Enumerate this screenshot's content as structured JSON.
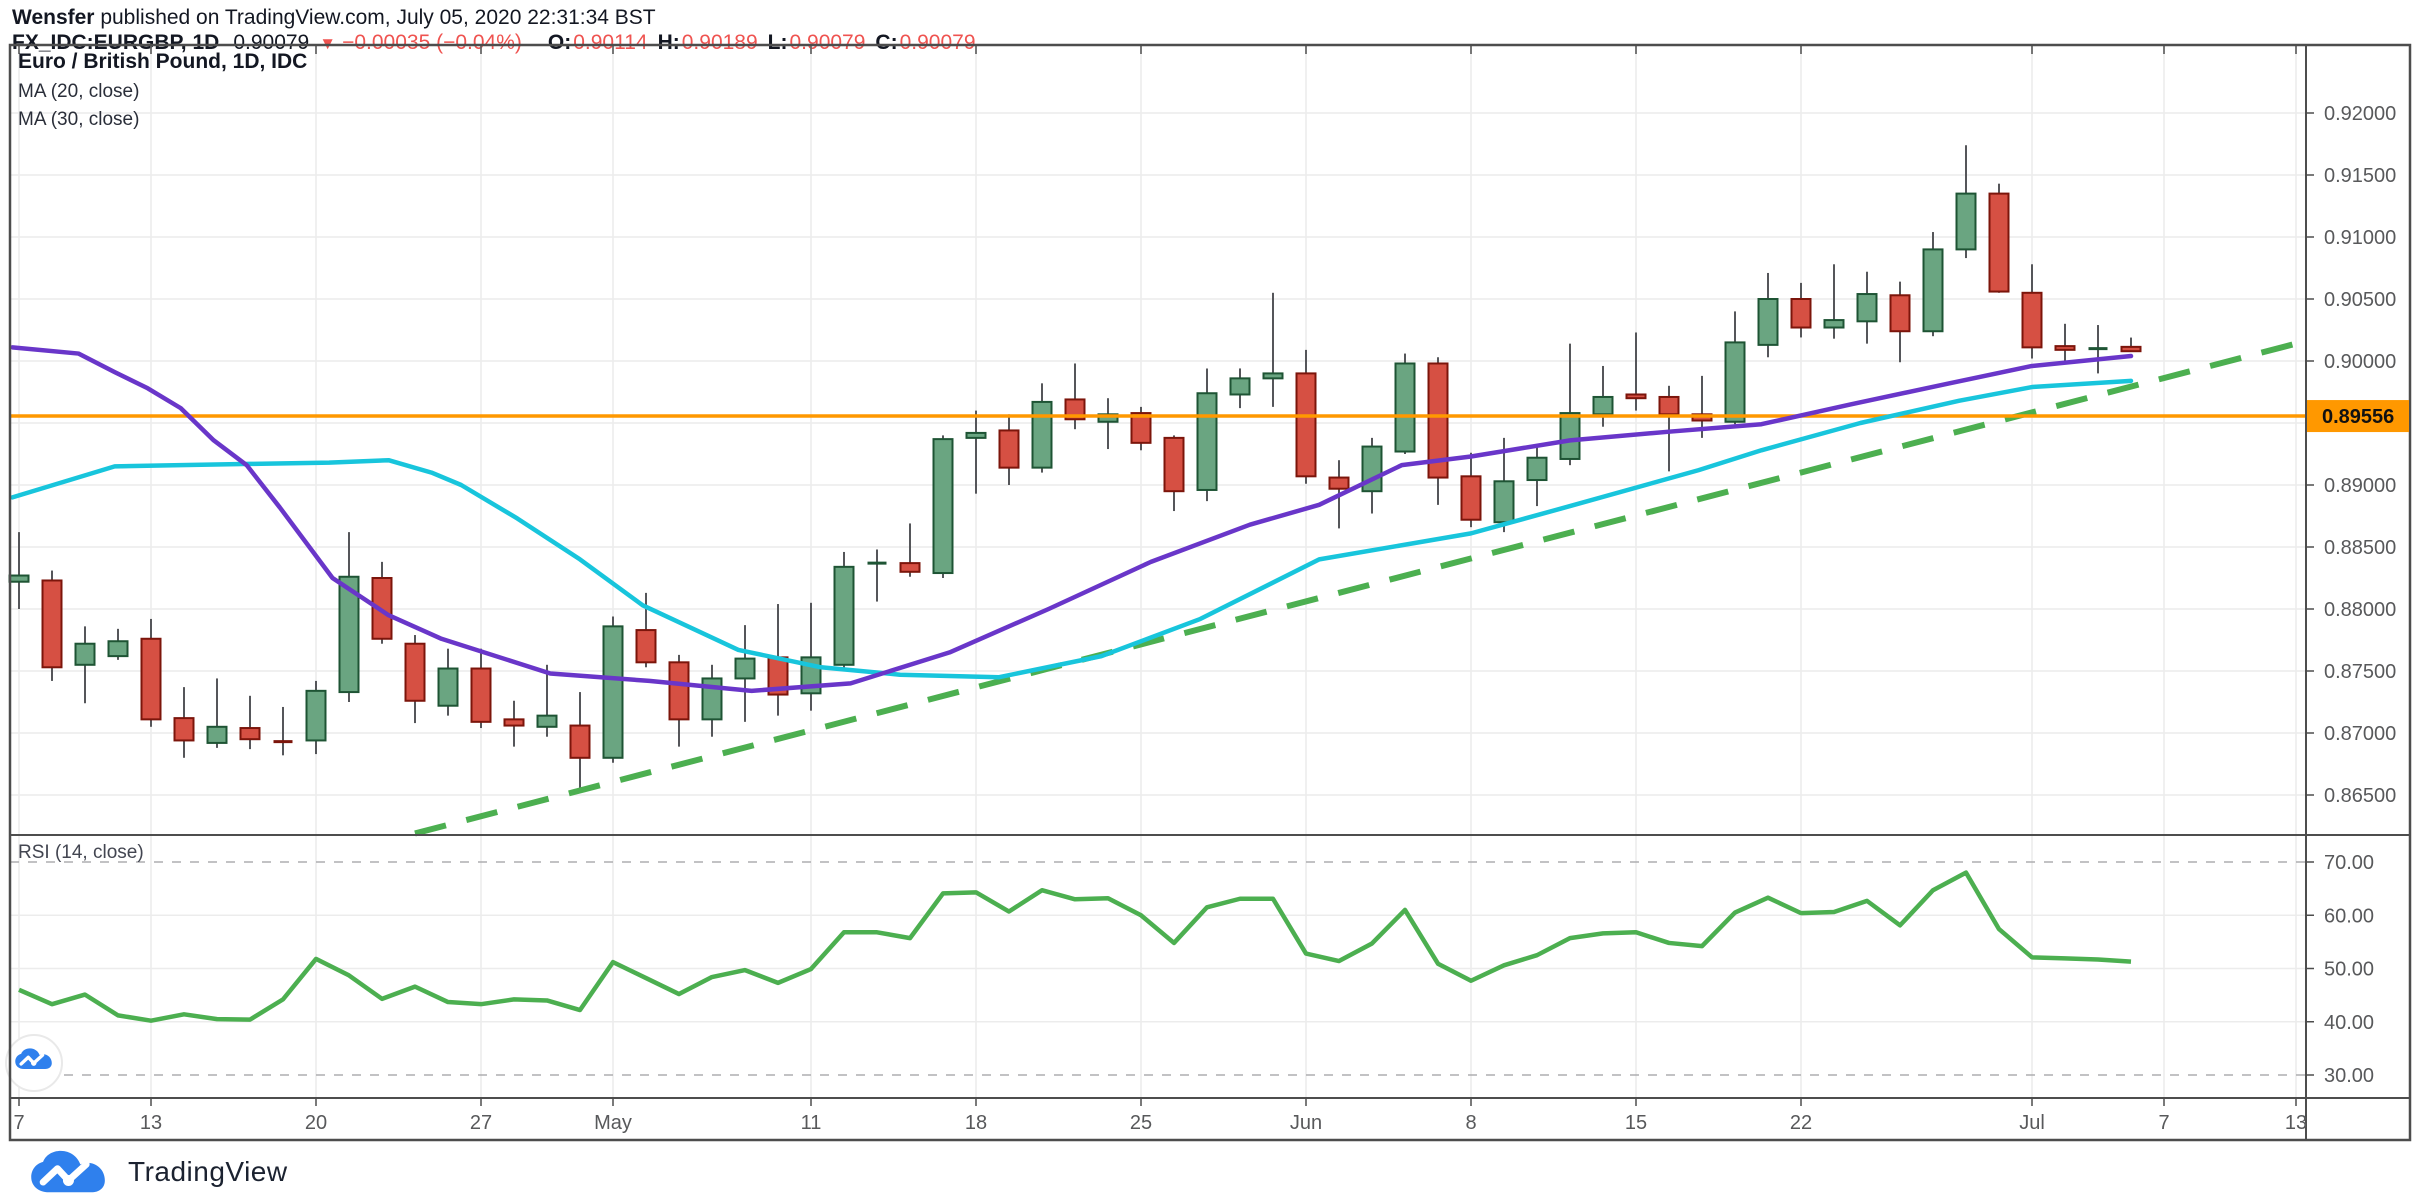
{
  "header": {
    "author": "Wensfer",
    "publish_text": " published on TradingView.com, July 05, 2020 22:31:34 BST",
    "symbol": "FX_IDC:EURGBP, 1D",
    "last_price": "0.90079",
    "direction_icon": "down-triangle",
    "change": "−0.00035 (−0.04%)",
    "ohlc": [
      {
        "k": "O:",
        "v": "0.90114"
      },
      {
        "k": "H:",
        "v": "0.90189"
      },
      {
        "k": "L:",
        "v": "0.90079"
      },
      {
        "k": "C:",
        "v": "0.90079"
      }
    ]
  },
  "legend": {
    "title": "Euro / British Pound, 1D, IDC",
    "ma1": "MA (20, close)",
    "ma2": "MA (30, close)"
  },
  "rsi_label": "RSI (14, close)",
  "footer_logo_text": "TradingView",
  "colors": {
    "ink": "#131722",
    "red": "#ef5350",
    "axis_text": "#58595b",
    "grid": "#ececec",
    "frame": "#4d4d4d",
    "up_fill": "#6aa581",
    "up_border": "#1e5434",
    "down_fill": "#d65043",
    "down_border": "#7c150b",
    "wick": "#55565a",
    "ma20": "#6936c9",
    "ma30": "#18c5dc",
    "orange": "#ff9800",
    "green_line": "#4caf50",
    "level_dash": "#adaeb0",
    "logo_blue": "#2f80ed"
  },
  "chart_data": {
    "type": "candlestick",
    "title": "Euro / British Pound, 1D, IDC",
    "symbol": "EURGBP",
    "timeframe": "1D",
    "price_axis_ticks": [
      "0.92000",
      "0.91500",
      "0.91000",
      "0.90500",
      "0.90000",
      "0.89500",
      "0.89000",
      "0.88500",
      "0.88000",
      "0.87500",
      "0.87000",
      "0.86500"
    ],
    "price_axis_values": [
      0.92,
      0.915,
      0.91,
      0.905,
      0.9,
      0.895,
      0.89,
      0.885,
      0.88,
      0.875,
      0.87,
      0.865
    ],
    "price_range_visible": [
      0.8618,
      0.9255
    ],
    "price_line": {
      "value": 0.89556,
      "label": "0.89556"
    },
    "time_ticks": [
      {
        "label": "7",
        "i": 0
      },
      {
        "label": "13",
        "i": 4
      },
      {
        "label": "20",
        "i": 9
      },
      {
        "label": "27",
        "i": 14
      },
      {
        "label": "May",
        "i": 18
      },
      {
        "label": "11",
        "i": 24
      },
      {
        "label": "18",
        "i": 29
      },
      {
        "label": "25",
        "i": 34
      },
      {
        "label": "Jun",
        "i": 39
      },
      {
        "label": "8",
        "i": 44
      },
      {
        "label": "15",
        "i": 49
      },
      {
        "label": "22",
        "i": 54
      },
      {
        "label": "Jul",
        "i": 61
      },
      {
        "label": "7",
        "i": 65
      },
      {
        "label": "13",
        "i": 69
      }
    ],
    "candles": [
      [
        "Apr 7",
        0.8822,
        0.8862,
        0.88,
        0.8827
      ],
      [
        "Apr 8",
        0.8823,
        0.8831,
        0.8742,
        0.8753
      ],
      [
        "Apr 9",
        0.8755,
        0.8786,
        0.8724,
        0.8772
      ],
      [
        "Apr 10",
        0.8762,
        0.8784,
        0.8759,
        0.8774
      ],
      [
        "Apr 13",
        0.8776,
        0.8792,
        0.8705,
        0.8711
      ],
      [
        "Apr 14",
        0.8712,
        0.8737,
        0.868,
        0.8694
      ],
      [
        "Apr 15",
        0.8692,
        0.8744,
        0.8688,
        0.8705
      ],
      [
        "Apr 16",
        0.8704,
        0.873,
        0.8687,
        0.8695
      ],
      [
        "Apr 17",
        0.8694,
        0.8721,
        0.8682,
        0.8692
      ],
      [
        "Apr 20",
        0.8694,
        0.8742,
        0.8683,
        0.8734
      ],
      [
        "Apr 21",
        0.8733,
        0.8862,
        0.8725,
        0.8826
      ],
      [
        "Apr 22",
        0.8825,
        0.8838,
        0.8772,
        0.8776
      ],
      [
        "Apr 23",
        0.8772,
        0.8779,
        0.8708,
        0.8726
      ],
      [
        "Apr 24",
        0.8722,
        0.8768,
        0.8714,
        0.8752
      ],
      [
        "Apr 27",
        0.8752,
        0.8768,
        0.8704,
        0.8709
      ],
      [
        "Apr 28",
        0.8711,
        0.8726,
        0.8689,
        0.8706
      ],
      [
        "Apr 29",
        0.8705,
        0.8755,
        0.8697,
        0.8714
      ],
      [
        "Apr 30",
        0.8706,
        0.8733,
        0.8655,
        0.868
      ],
      [
        "May 1",
        0.868,
        0.8794,
        0.8676,
        0.8786
      ],
      [
        "May 4",
        0.8783,
        0.8813,
        0.8753,
        0.8757
      ],
      [
        "May 5",
        0.8757,
        0.8763,
        0.8689,
        0.8711
      ],
      [
        "May 6",
        0.8711,
        0.8755,
        0.8697,
        0.8744
      ],
      [
        "May 7",
        0.8744,
        0.8787,
        0.8709,
        0.876
      ],
      [
        "May 8",
        0.8761,
        0.8804,
        0.8714,
        0.8731
      ],
      [
        "May 11",
        0.8732,
        0.8805,
        0.8718,
        0.8761
      ],
      [
        "May 12",
        0.8755,
        0.8846,
        0.875,
        0.8834
      ],
      [
        "May 13",
        0.8837,
        0.8848,
        0.8806,
        0.8837
      ],
      [
        "May 14",
        0.8837,
        0.8869,
        0.8826,
        0.883
      ],
      [
        "May 15",
        0.8829,
        0.894,
        0.8825,
        0.8937
      ],
      [
        "May 18",
        0.8938,
        0.896,
        0.8893,
        0.8942
      ],
      [
        "May 19",
        0.8944,
        0.8957,
        0.89,
        0.8914
      ],
      [
        "May 20",
        0.8914,
        0.8982,
        0.891,
        0.8967
      ],
      [
        "May 21",
        0.8969,
        0.8998,
        0.8945,
        0.8953
      ],
      [
        "May 22",
        0.8951,
        0.897,
        0.8929,
        0.8957
      ],
      [
        "May 25",
        0.8958,
        0.8963,
        0.8928,
        0.8934
      ],
      [
        "May 26",
        0.8938,
        0.894,
        0.8879,
        0.8895
      ],
      [
        "May 27",
        0.8896,
        0.8994,
        0.8887,
        0.8974
      ],
      [
        "May 28",
        0.8973,
        0.8994,
        0.8962,
        0.8986
      ],
      [
        "May 29",
        0.8986,
        0.9055,
        0.8963,
        0.899
      ],
      [
        "Jun 1",
        0.899,
        0.9009,
        0.8901,
        0.8907
      ],
      [
        "Jun 2",
        0.8906,
        0.892,
        0.8865,
        0.8897
      ],
      [
        "Jun 3",
        0.8895,
        0.8938,
        0.8877,
        0.8931
      ],
      [
        "Jun 4",
        0.8927,
        0.9006,
        0.8925,
        0.8998
      ],
      [
        "Jun 5",
        0.8998,
        0.9003,
        0.8884,
        0.8906
      ],
      [
        "Jun 8",
        0.8907,
        0.8926,
        0.8866,
        0.8872
      ],
      [
        "Jun 9",
        0.887,
        0.8938,
        0.8862,
        0.8903
      ],
      [
        "Jun 10",
        0.8904,
        0.8932,
        0.8883,
        0.8922
      ],
      [
        "Jun 11",
        0.8921,
        0.9014,
        0.8916,
        0.8958
      ],
      [
        "Jun 12",
        0.8957,
        0.8996,
        0.8947,
        0.8971
      ],
      [
        "Jun 15",
        0.8973,
        0.9023,
        0.896,
        0.897
      ],
      [
        "Jun 16",
        0.8971,
        0.898,
        0.8911,
        0.8957
      ],
      [
        "Jun 17",
        0.8957,
        0.8988,
        0.8938,
        0.8952
      ],
      [
        "Jun 18",
        0.8951,
        0.904,
        0.8949,
        0.9015
      ],
      [
        "Jun 19",
        0.9013,
        0.9071,
        0.9003,
        0.905
      ],
      [
        "Jun 22",
        0.905,
        0.9063,
        0.9019,
        0.9027
      ],
      [
        "Jun 23",
        0.9027,
        0.9078,
        0.9018,
        0.9033
      ],
      [
        "Jun 24",
        0.9032,
        0.9072,
        0.9014,
        0.9054
      ],
      [
        "Jun 25",
        0.9053,
        0.9064,
        0.8999,
        0.9024
      ],
      [
        "Jun 26",
        0.9024,
        0.9104,
        0.902,
        0.909
      ],
      [
        "Jun 29",
        0.909,
        0.9174,
        0.9083,
        0.9135
      ],
      [
        "Jun 30",
        0.9135,
        0.9143,
        0.9055,
        0.9056
      ],
      [
        "Jul 1",
        0.9055,
        0.9078,
        0.9002,
        0.9011
      ],
      [
        "Jul 2",
        0.9012,
        0.903,
        0.9,
        0.9009
      ],
      [
        "Jul 3",
        0.901,
        0.9029,
        0.899,
        0.901
      ],
      [
        "Jul 5",
        0.90114,
        0.90189,
        0.90079,
        0.90079
      ]
    ],
    "ma20": {
      "name": "MA (20, close)",
      "points": [
        [
          -0.2,
          0.9011
        ],
        [
          1.8,
          0.9006
        ],
        [
          2.9,
          0.8991
        ],
        [
          3.9,
          0.8978
        ],
        [
          4.9,
          0.8962
        ],
        [
          5.9,
          0.8936
        ],
        [
          6.9,
          0.8916
        ],
        [
          7.9,
          0.8882
        ],
        [
          9.5,
          0.8825
        ],
        [
          11.2,
          0.8795
        ],
        [
          12.8,
          0.8776
        ],
        [
          16.1,
          0.8748
        ],
        [
          19.1,
          0.8742
        ],
        [
          22.2,
          0.8734
        ],
        [
          25.2,
          0.874
        ],
        [
          28.2,
          0.8765
        ],
        [
          31.2,
          0.88
        ],
        [
          34.3,
          0.8838
        ],
        [
          37.3,
          0.8868
        ],
        [
          39.4,
          0.8884
        ],
        [
          41.9,
          0.8916
        ],
        [
          44.0,
          0.8923
        ],
        [
          47.0,
          0.8936
        ],
        [
          50.0,
          0.8943
        ],
        [
          52.8,
          0.8949
        ],
        [
          55.5,
          0.8965
        ],
        [
          58.5,
          0.8982
        ],
        [
          61.0,
          0.8996
        ],
        [
          64.0,
          0.9004
        ]
      ]
    },
    "ma30": {
      "name": "MA (30, close)",
      "points": [
        [
          -0.2,
          0.889
        ],
        [
          2.9,
          0.8915
        ],
        [
          4.9,
          0.8916
        ],
        [
          7.0,
          0.8917
        ],
        [
          9.4,
          0.8918
        ],
        [
          11.2,
          0.892
        ],
        [
          12.5,
          0.891
        ],
        [
          13.4,
          0.89
        ],
        [
          15.1,
          0.8873
        ],
        [
          17.0,
          0.884
        ],
        [
          18.9,
          0.8803
        ],
        [
          21.8,
          0.8767
        ],
        [
          24.3,
          0.8753
        ],
        [
          26.7,
          0.8747
        ],
        [
          29.7,
          0.8745
        ],
        [
          32.8,
          0.8762
        ],
        [
          35.8,
          0.8792
        ],
        [
          39.4,
          0.884
        ],
        [
          44.0,
          0.8861
        ],
        [
          47.0,
          0.8883
        ],
        [
          50.9,
          0.8912
        ],
        [
          52.8,
          0.8928
        ],
        [
          55.8,
          0.895
        ],
        [
          58.8,
          0.8968
        ],
        [
          61.0,
          0.8979
        ],
        [
          64.0,
          0.8984
        ]
      ]
    },
    "trendline": {
      "style": "dashed",
      "from": [
        12.0,
        0.8619
      ],
      "to": [
        69.0,
        0.9014
      ]
    },
    "rsi": {
      "name": "RSI (14, close)",
      "period": 14,
      "ticks": [
        "70.00",
        "60.00",
        "50.00",
        "40.00",
        "30.00"
      ],
      "tick_values": [
        70,
        60,
        50,
        40,
        30
      ],
      "dashed_levels": [
        70,
        30
      ],
      "range_visible": [
        25.7,
        75.1
      ],
      "values": [
        46.0,
        43.3,
        45.1,
        41.2,
        40.2,
        41.4,
        40.5,
        40.4,
        44.2,
        51.8,
        48.7,
        44.3,
        46.6,
        43.7,
        43.3,
        44.2,
        44.0,
        42.2,
        51.2,
        48.2,
        45.2,
        48.4,
        49.7,
        47.3,
        49.9,
        56.8,
        56.8,
        55.7,
        64.1,
        64.3,
        60.7,
        64.7,
        63.0,
        63.2,
        60.0,
        54.8,
        61.5,
        63.1,
        63.1,
        52.8,
        51.4,
        54.7,
        61.0,
        50.9,
        47.7,
        50.6,
        52.5,
        55.7,
        56.6,
        56.8,
        54.8,
        54.2,
        60.5,
        63.3,
        60.4,
        60.6,
        62.7,
        58.1,
        64.7,
        68.0,
        57.4,
        52.1,
        51.9,
        51.7,
        51.3
      ]
    }
  }
}
